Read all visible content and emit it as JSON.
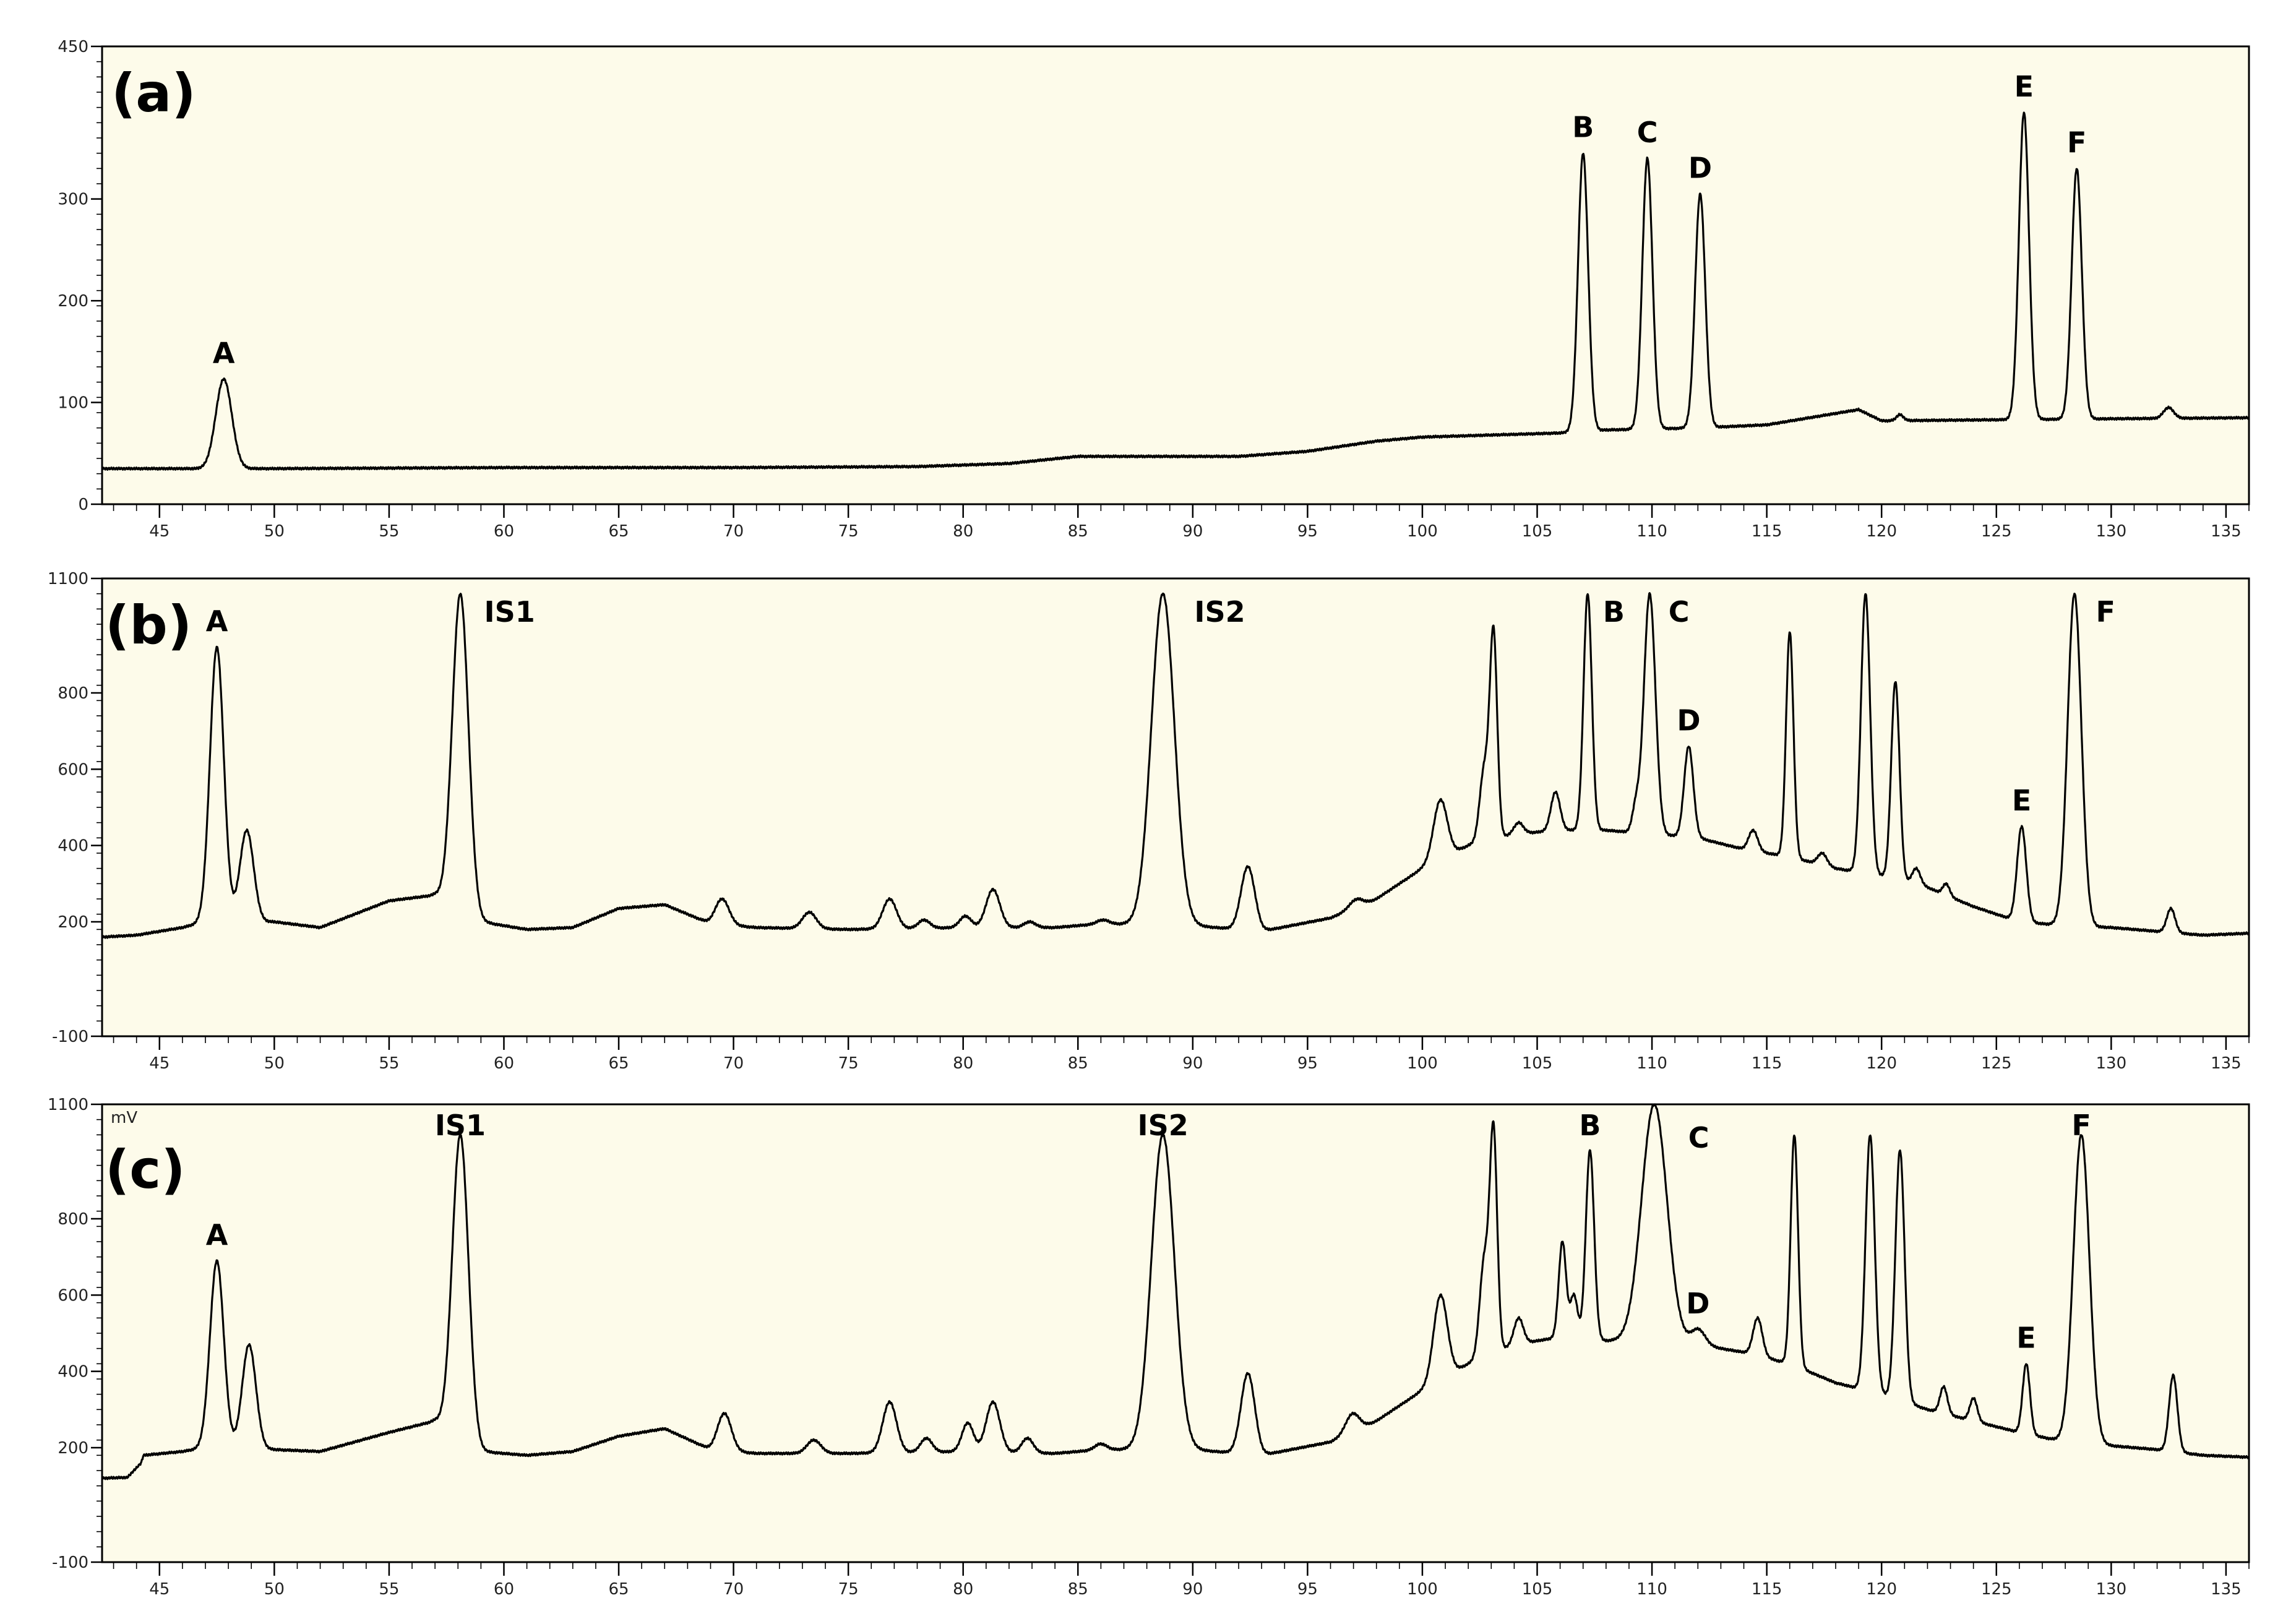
{
  "chart_data": [
    {
      "type": "line",
      "panel_label": "(a)",
      "unit_label": "",
      "xlim": [
        42.5,
        136
      ],
      "ylim": [
        0,
        450
      ],
      "x_ticks": [
        45,
        50,
        55,
        60,
        65,
        70,
        75,
        80,
        85,
        90,
        95,
        100,
        105,
        110,
        115,
        120,
        125,
        130,
        135
      ],
      "y_ticks": [
        0,
        100,
        200,
        300,
        450
      ],
      "baseline": [
        [
          42.5,
          35
        ],
        [
          50,
          35
        ],
        [
          60,
          36
        ],
        [
          70,
          36
        ],
        [
          78,
          37
        ],
        [
          82,
          40
        ],
        [
          85,
          47
        ],
        [
          88,
          47
        ],
        [
          92,
          47
        ],
        [
          95,
          52
        ],
        [
          98,
          62
        ],
        [
          100,
          66
        ],
        [
          103,
          68
        ],
        [
          106,
          70
        ],
        [
          108,
          73
        ],
        [
          112,
          75
        ],
        [
          115,
          78
        ],
        [
          119,
          93
        ],
        [
          120,
          82
        ],
        [
          125,
          83
        ],
        [
          130,
          84
        ],
        [
          136,
          85
        ]
      ],
      "peaks": [
        {
          "label": "A",
          "x": 47.8,
          "y": 123,
          "w": 0.35
        },
        {
          "label": "B",
          "x": 107.0,
          "y": 345,
          "w": 0.22
        },
        {
          "label": "C",
          "x": 109.8,
          "y": 340,
          "w": 0.22
        },
        {
          "label": "D",
          "x": 112.1,
          "y": 305,
          "w": 0.22
        },
        {
          "label": "E",
          "x": 126.2,
          "y": 385,
          "w": 0.22
        },
        {
          "label": "F",
          "x": 128.5,
          "y": 330,
          "w": 0.22
        },
        {
          "label": "",
          "x": 132.5,
          "y": 95,
          "w": 0.22
        },
        {
          "label": "",
          "x": 120.8,
          "y": 88,
          "w": 0.15
        }
      ]
    },
    {
      "type": "line",
      "panel_label": "(b)",
      "unit_label": "",
      "xlim": [
        42.5,
        136
      ],
      "ylim": [
        -100,
        1100
      ],
      "x_ticks": [
        45,
        50,
        55,
        60,
        65,
        70,
        75,
        80,
        85,
        90,
        95,
        100,
        105,
        110,
        115,
        120,
        125,
        130,
        135
      ],
      "y_ticks": [
        -100,
        200,
        400,
        600,
        800,
        1100
      ],
      "baseline": [
        [
          42.5,
          160
        ],
        [
          44,
          165
        ],
        [
          46,
          185
        ],
        [
          47,
          200
        ],
        [
          50,
          200
        ],
        [
          52,
          185
        ],
        [
          55,
          255
        ],
        [
          57,
          270
        ],
        [
          59,
          200
        ],
        [
          61,
          180
        ],
        [
          63,
          185
        ],
        [
          65,
          235
        ],
        [
          67,
          245
        ],
        [
          69,
          195
        ],
        [
          71,
          185
        ],
        [
          75,
          180
        ],
        [
          80,
          185
        ],
        [
          84,
          185
        ],
        [
          86,
          195
        ],
        [
          90,
          190
        ],
        [
          93,
          175
        ],
        [
          96,
          210
        ],
        [
          98,
          260
        ],
        [
          100,
          340
        ],
        [
          102,
          400
        ],
        [
          104,
          430
        ],
        [
          106,
          440
        ],
        [
          108,
          440
        ],
        [
          110,
          430
        ],
        [
          112,
          420
        ],
        [
          114,
          390
        ],
        [
          116,
          370
        ],
        [
          118,
          340
        ],
        [
          120,
          320
        ],
        [
          122,
          290
        ],
        [
          124,
          240
        ],
        [
          126,
          200
        ],
        [
          128,
          190
        ],
        [
          130,
          185
        ],
        [
          132,
          175
        ],
        [
          134,
          165
        ],
        [
          136,
          170
        ]
      ],
      "peaks": [
        {
          "label": "A",
          "x": 47.5,
          "y": 920,
          "w": 0.3
        },
        {
          "label": "",
          "x": 48.8,
          "y": 440,
          "w": 0.3
        },
        {
          "label": "IS1",
          "x": 58.1,
          "y": 1060,
          "w": 0.35
        },
        {
          "label": "",
          "x": 69.5,
          "y": 260,
          "w": 0.3
        },
        {
          "label": "",
          "x": 73.3,
          "y": 225,
          "w": 0.3
        },
        {
          "label": "",
          "x": 76.8,
          "y": 260,
          "w": 0.3
        },
        {
          "label": "",
          "x": 78.3,
          "y": 205,
          "w": 0.25
        },
        {
          "label": "",
          "x": 80.1,
          "y": 215,
          "w": 0.25
        },
        {
          "label": "",
          "x": 81.3,
          "y": 285,
          "w": 0.3
        },
        {
          "label": "",
          "x": 82.9,
          "y": 200,
          "w": 0.25
        },
        {
          "label": "",
          "x": 86.1,
          "y": 205,
          "w": 0.25
        },
        {
          "label": "IS2",
          "x": 88.7,
          "y": 1060,
          "w": 0.5
        },
        {
          "label": "",
          "x": 92.4,
          "y": 345,
          "w": 0.3
        },
        {
          "label": "",
          "x": 97.2,
          "y": 260,
          "w": 0.3
        },
        {
          "label": "",
          "x": 100.8,
          "y": 520,
          "w": 0.3
        },
        {
          "label": "",
          "x": 102.7,
          "y": 600,
          "w": 0.2
        },
        {
          "label": "",
          "x": 103.1,
          "y": 950,
          "w": 0.16
        },
        {
          "label": "",
          "x": 104.2,
          "y": 460,
          "w": 0.2
        },
        {
          "label": "",
          "x": 105.8,
          "y": 540,
          "w": 0.2
        },
        {
          "label": "B",
          "x": 107.2,
          "y": 1060,
          "w": 0.18
        },
        {
          "label": "",
          "x": 109.3,
          "y": 500,
          "w": 0.16
        },
        {
          "label": "C",
          "x": 109.9,
          "y": 1060,
          "w": 0.25
        },
        {
          "label": "D",
          "x": 111.6,
          "y": 660,
          "w": 0.2
        },
        {
          "label": "",
          "x": 114.4,
          "y": 440,
          "w": 0.2
        },
        {
          "label": "",
          "x": 116.0,
          "y": 960,
          "w": 0.16
        },
        {
          "label": "",
          "x": 117.4,
          "y": 380,
          "w": 0.2
        },
        {
          "label": "",
          "x": 119.3,
          "y": 1060,
          "w": 0.2
        },
        {
          "label": "",
          "x": 120.6,
          "y": 830,
          "w": 0.18
        },
        {
          "label": "",
          "x": 121.5,
          "y": 340,
          "w": 0.18
        },
        {
          "label": "",
          "x": 122.8,
          "y": 300,
          "w": 0.15
        },
        {
          "label": "E",
          "x": 126.1,
          "y": 450,
          "w": 0.2
        },
        {
          "label": "F",
          "x": 128.4,
          "y": 1060,
          "w": 0.3
        },
        {
          "label": "",
          "x": 132.6,
          "y": 235,
          "w": 0.18
        }
      ]
    },
    {
      "type": "line",
      "panel_label": "(c)",
      "unit_label": "mV",
      "xlim": [
        42.5,
        136
      ],
      "ylim": [
        -100,
        1100
      ],
      "x_ticks": [
        45,
        50,
        55,
        60,
        65,
        70,
        75,
        80,
        85,
        90,
        95,
        100,
        105,
        110,
        115,
        120,
        125,
        130,
        135
      ],
      "y_ticks": [
        -100,
        200,
        400,
        600,
        800,
        1100
      ],
      "baseline": [
        [
          42.5,
          120
        ],
        [
          43.6,
          122
        ],
        [
          44.2,
          160
        ],
        [
          44.3,
          180
        ],
        [
          46,
          190
        ],
        [
          47,
          200
        ],
        [
          50,
          195
        ],
        [
          52,
          190
        ],
        [
          55,
          240
        ],
        [
          57,
          270
        ],
        [
          59,
          190
        ],
        [
          61,
          180
        ],
        [
          63,
          190
        ],
        [
          65,
          230
        ],
        [
          67,
          250
        ],
        [
          69,
          195
        ],
        [
          71,
          185
        ],
        [
          75,
          185
        ],
        [
          80,
          190
        ],
        [
          84,
          185
        ],
        [
          86,
          195
        ],
        [
          90,
          195
        ],
        [
          93,
          180
        ],
        [
          96,
          215
        ],
        [
          98,
          270
        ],
        [
          100,
          350
        ],
        [
          102,
          420
        ],
        [
          104,
          470
        ],
        [
          106,
          490
        ],
        [
          108,
          480
        ],
        [
          110,
          480
        ],
        [
          112,
          470
        ],
        [
          114,
          450
        ],
        [
          116,
          420
        ],
        [
          118,
          370
        ],
        [
          120,
          340
        ],
        [
          122,
          300
        ],
        [
          124,
          270
        ],
        [
          126,
          240
        ],
        [
          128,
          215
        ],
        [
          130,
          205
        ],
        [
          132,
          195
        ],
        [
          134,
          180
        ],
        [
          136,
          175
        ]
      ],
      "peaks": [
        {
          "label": "A",
          "x": 47.5,
          "y": 690,
          "w": 0.3
        },
        {
          "label": "",
          "x": 48.9,
          "y": 470,
          "w": 0.3
        },
        {
          "label": "IS1",
          "x": 58.1,
          "y": 1020,
          "w": 0.35
        },
        {
          "label": "",
          "x": 69.6,
          "y": 290,
          "w": 0.3
        },
        {
          "label": "",
          "x": 73.5,
          "y": 220,
          "w": 0.3
        },
        {
          "label": "",
          "x": 76.8,
          "y": 320,
          "w": 0.3
        },
        {
          "label": "",
          "x": 78.4,
          "y": 225,
          "w": 0.25
        },
        {
          "label": "",
          "x": 80.2,
          "y": 265,
          "w": 0.25
        },
        {
          "label": "",
          "x": 81.3,
          "y": 320,
          "w": 0.3
        },
        {
          "label": "",
          "x": 82.8,
          "y": 225,
          "w": 0.25
        },
        {
          "label": "",
          "x": 86.0,
          "y": 210,
          "w": 0.25
        },
        {
          "label": "IS2",
          "x": 88.7,
          "y": 1020,
          "w": 0.5
        },
        {
          "label": "",
          "x": 92.4,
          "y": 395,
          "w": 0.3
        },
        {
          "label": "",
          "x": 97.0,
          "y": 290,
          "w": 0.3
        },
        {
          "label": "",
          "x": 100.8,
          "y": 600,
          "w": 0.3
        },
        {
          "label": "",
          "x": 102.7,
          "y": 690,
          "w": 0.2
        },
        {
          "label": "",
          "x": 103.1,
          "y": 1020,
          "w": 0.16
        },
        {
          "label": "",
          "x": 104.2,
          "y": 540,
          "w": 0.2
        },
        {
          "label": "",
          "x": 106.1,
          "y": 740,
          "w": 0.16
        },
        {
          "label": "",
          "x": 106.6,
          "y": 600,
          "w": 0.16
        },
        {
          "label": "B",
          "x": 107.3,
          "y": 980,
          "w": 0.18
        },
        {
          "label": "C",
          "x": 110.1,
          "y": 1100,
          "w": 0.55
        },
        {
          "label": "D",
          "x": 112.0,
          "y": 510,
          "w": 0.3
        },
        {
          "label": "",
          "x": 114.6,
          "y": 540,
          "w": 0.2
        },
        {
          "label": "",
          "x": 116.2,
          "y": 1020,
          "w": 0.16
        },
        {
          "label": "",
          "x": 119.5,
          "y": 1020,
          "w": 0.2
        },
        {
          "label": "",
          "x": 120.8,
          "y": 980,
          "w": 0.2
        },
        {
          "label": "",
          "x": 122.7,
          "y": 360,
          "w": 0.16
        },
        {
          "label": "",
          "x": 124.0,
          "y": 330,
          "w": 0.16
        },
        {
          "label": "E",
          "x": 126.3,
          "y": 420,
          "w": 0.16
        },
        {
          "label": "F",
          "x": 128.7,
          "y": 1020,
          "w": 0.35
        },
        {
          "label": "",
          "x": 132.7,
          "y": 390,
          "w": 0.18
        }
      ]
    }
  ]
}
